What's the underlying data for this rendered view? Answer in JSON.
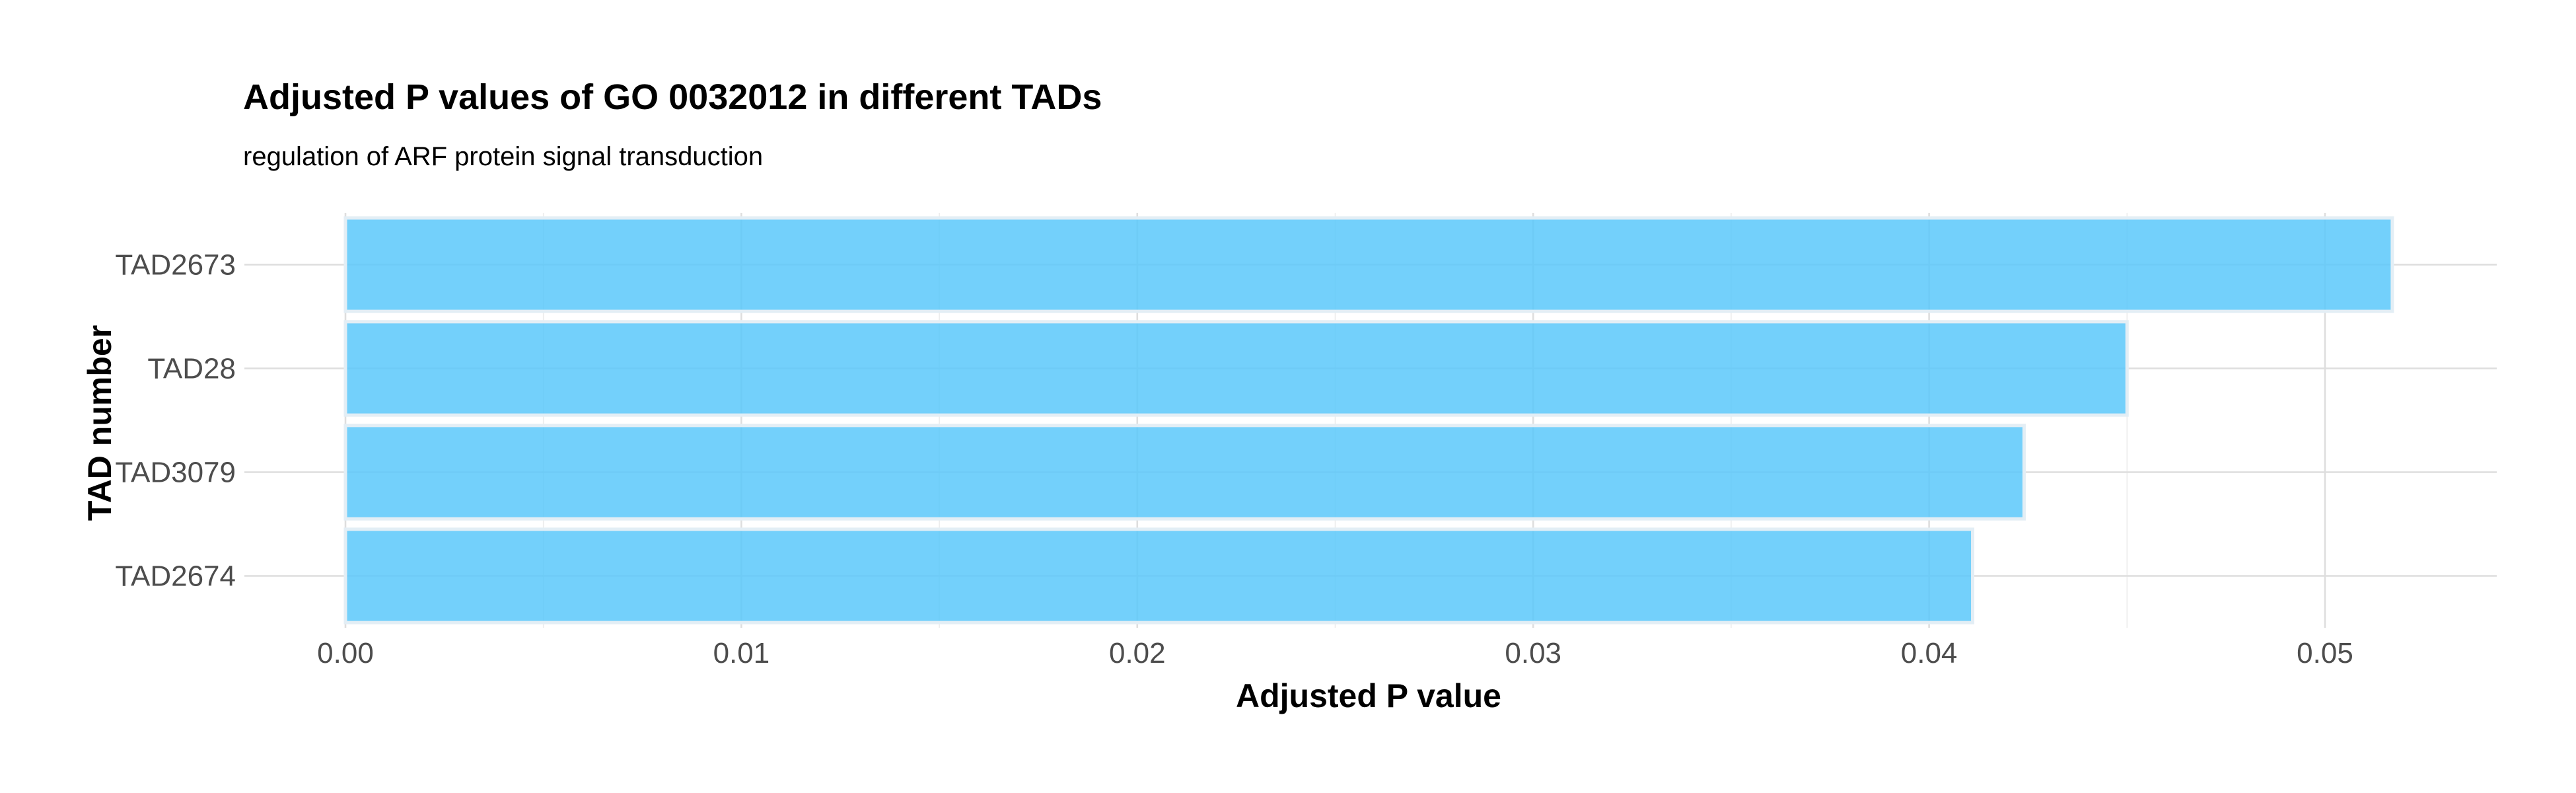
{
  "chart_data": {
    "type": "bar",
    "orientation": "horizontal",
    "title": "Adjusted P values of GO 0032012 in different TADs",
    "subtitle": "regulation of ARF protein signal transduction",
    "xlabel": "Adjusted P value",
    "ylabel": "TAD number",
    "categories": [
      "TAD2673",
      "TAD28",
      "TAD3079",
      "TAD2674"
    ],
    "values": [
      0.0517,
      0.045,
      0.0424,
      0.0411
    ],
    "xlim": [
      0,
      0.0543
    ],
    "xticks": [
      0.0,
      0.01,
      0.02,
      0.03,
      0.04,
      0.05
    ],
    "xtick_labels": [
      "0.00",
      "0.01",
      "0.02",
      "0.03",
      "0.04",
      "0.05"
    ],
    "grid": true,
    "legend": "none",
    "bar_color": "#5bc8fa"
  }
}
